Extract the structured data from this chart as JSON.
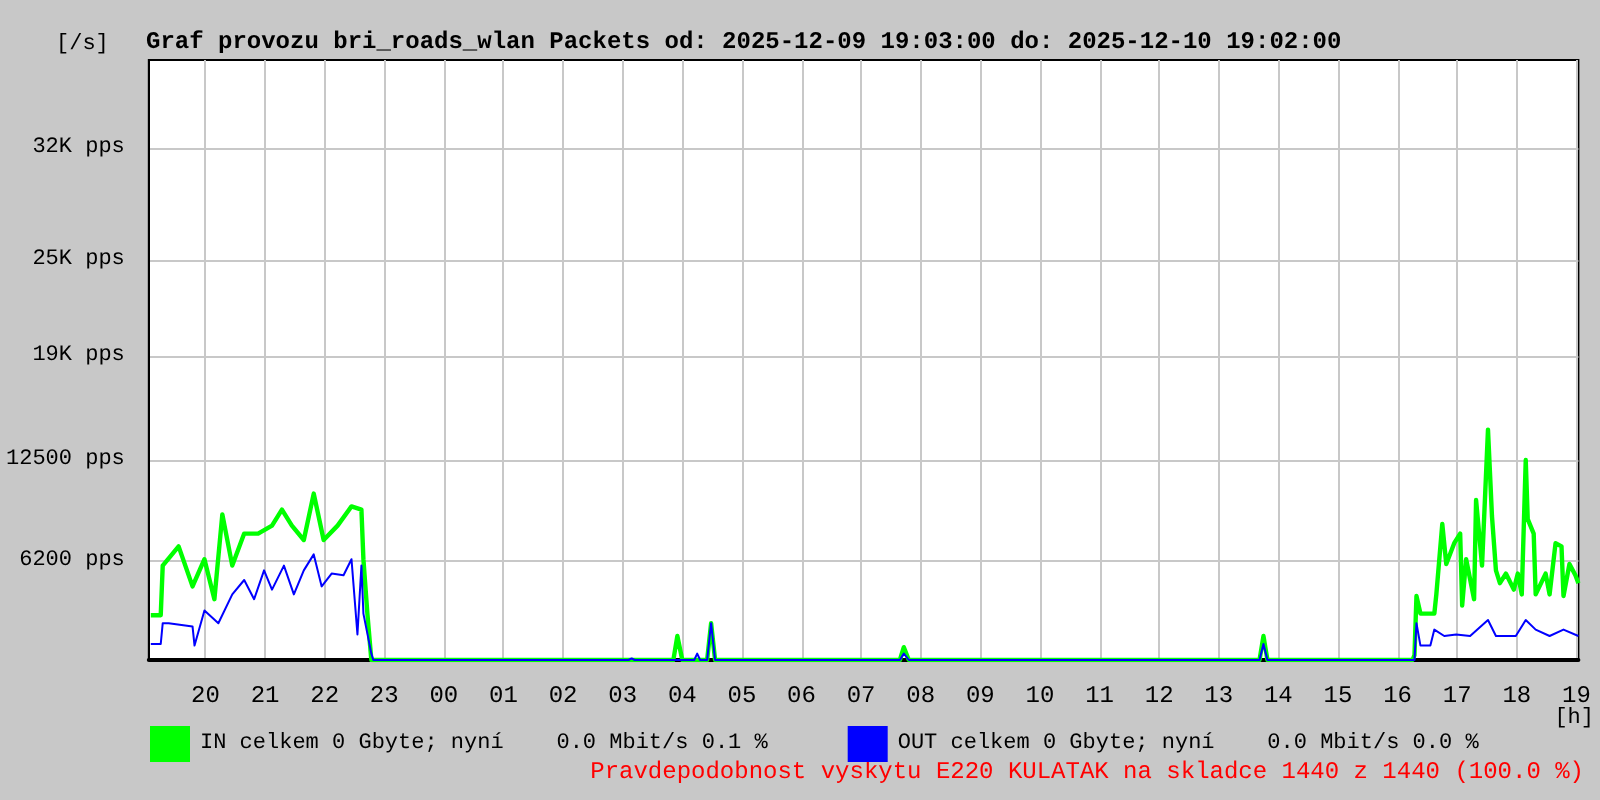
{
  "chart_data": {
    "type": "line",
    "title": "Graf provozu bri_roads_wlan Packets od: 2025-12-09 19:03:00 do: 2025-12-10 19:02:00",
    "ylabel": "[/s]",
    "xlabel": "[h]",
    "xlim": [
      "2025-12-09T19:03",
      "2025-12-10T19:02"
    ],
    "xticks": [
      {
        "value": "2025-12-09T20:00",
        "label": "20"
      },
      {
        "value": "2025-12-09T21:00",
        "label": "21"
      },
      {
        "value": "2025-12-09T22:00",
        "label": "22"
      },
      {
        "value": "2025-12-09T23:00",
        "label": "23"
      },
      {
        "value": "2025-12-10T00:00",
        "label": "00"
      },
      {
        "value": "2025-12-10T01:00",
        "label": "01"
      },
      {
        "value": "2025-12-10T02:00",
        "label": "02"
      },
      {
        "value": "2025-12-10T03:00",
        "label": "03"
      },
      {
        "value": "2025-12-10T04:00",
        "label": "04"
      },
      {
        "value": "2025-12-10T05:00",
        "label": "05"
      },
      {
        "value": "2025-12-10T06:00",
        "label": "06"
      },
      {
        "value": "2025-12-10T07:00",
        "label": "07"
      },
      {
        "value": "2025-12-10T08:00",
        "label": "08"
      },
      {
        "value": "2025-12-10T09:00",
        "label": "09"
      },
      {
        "value": "2025-12-10T10:00",
        "label": "10"
      },
      {
        "value": "2025-12-10T11:00",
        "label": "11"
      },
      {
        "value": "2025-12-10T12:00",
        "label": "12"
      },
      {
        "value": "2025-12-10T13:00",
        "label": "13"
      },
      {
        "value": "2025-12-10T14:00",
        "label": "14"
      },
      {
        "value": "2025-12-10T15:00",
        "label": "15"
      },
      {
        "value": "2025-12-10T16:00",
        "label": "16"
      },
      {
        "value": "2025-12-10T17:00",
        "label": "17"
      },
      {
        "value": "2025-12-10T18:00",
        "label": "18"
      },
      {
        "value": "2025-12-10T19:00",
        "label": "19"
      }
    ],
    "ylim": [
      0,
      37500
    ],
    "yticks": [
      {
        "value": 6200,
        "label": "6200 pps"
      },
      {
        "value": 12500,
        "label": "12500 pps"
      },
      {
        "value": 19000,
        "label": "19K pps"
      },
      {
        "value": 25000,
        "label": "25K pps"
      },
      {
        "value": 32000,
        "label": "32K pps"
      }
    ],
    "grid": true,
    "legend": "bottom left",
    "marker": "none",
    "line_style": "solid",
    "series": [
      {
        "name": "IN celkem 0 Gbyte; nyní    0.0 Mbit/s 0.1 %",
        "color": "#00ff00",
        "x": [
          "2025-12-09T19:05",
          "2025-12-09T19:15",
          "2025-12-09T19:17",
          "2025-12-09T19:33",
          "2025-12-09T19:47",
          "2025-12-09T19:59",
          "2025-12-09T20:09",
          "2025-12-09T20:17",
          "2025-12-09T20:27",
          "2025-12-09T20:39",
          "2025-12-09T20:53",
          "2025-12-09T21:07",
          "2025-12-09T21:17",
          "2025-12-09T21:27",
          "2025-12-09T21:39",
          "2025-12-09T21:49",
          "2025-12-09T21:59",
          "2025-12-09T22:13",
          "2025-12-09T22:27",
          "2025-12-09T22:37",
          "2025-12-09T22:39",
          "2025-12-09T22:43",
          "2025-12-09T22:47",
          "2025-12-10T03:51",
          "2025-12-10T03:55",
          "2025-12-10T04:00",
          "2025-12-10T04:25",
          "2025-12-10T04:29",
          "2025-12-10T04:33",
          "2025-12-10T07:39",
          "2025-12-10T07:43",
          "2025-12-10T07:48",
          "2025-12-10T13:41",
          "2025-12-10T13:45",
          "2025-12-10T13:49",
          "2025-12-10T16:15",
          "2025-12-10T16:17",
          "2025-12-10T16:19",
          "2025-12-10T16:23",
          "2025-12-10T16:37",
          "2025-12-10T16:39",
          "2025-12-10T16:45",
          "2025-12-10T16:49",
          "2025-12-10T16:57",
          "2025-12-10T17:03",
          "2025-12-10T17:05",
          "2025-12-10T17:09",
          "2025-12-10T17:17",
          "2025-12-10T17:19",
          "2025-12-10T17:25",
          "2025-12-10T17:31",
          "2025-12-10T17:35",
          "2025-12-10T17:39",
          "2025-12-10T17:43",
          "2025-12-10T17:49",
          "2025-12-10T17:57",
          "2025-12-10T18:01",
          "2025-12-10T18:05",
          "2025-12-10T18:09",
          "2025-12-10T18:11",
          "2025-12-10T18:17",
          "2025-12-10T18:19",
          "2025-12-10T18:29",
          "2025-12-10T18:33",
          "2025-12-10T18:39",
          "2025-12-10T18:45",
          "2025-12-10T18:47",
          "2025-12-10T18:53",
          "2025-12-10T18:59",
          "2025-12-10T19:02"
        ],
        "values": [
          2800,
          2800,
          5900,
          7100,
          4600,
          6300,
          3800,
          9100,
          5900,
          7900,
          7900,
          8400,
          9400,
          8400,
          7500,
          10400,
          7500,
          8400,
          9600,
          9400,
          6300,
          2900,
          0,
          0,
          1500,
          0,
          0,
          2300,
          0,
          0,
          800,
          0,
          0,
          1500,
          0,
          0,
          300,
          4000,
          2900,
          2900,
          4100,
          8500,
          6000,
          7300,
          7900,
          3400,
          6300,
          3800,
          10000,
          5900,
          14400,
          9000,
          5600,
          4800,
          5400,
          4400,
          5400,
          4100,
          12500,
          8800,
          7900,
          4100,
          5400,
          4100,
          7300,
          7100,
          4000,
          6000,
          5300,
          4800
        ]
      },
      {
        "name": "OUT celkem 0 Gbyte; nyní    0.0 Mbit/s 0.0 %",
        "color": "#0000ff",
        "x": [
          "2025-12-09T19:05",
          "2025-12-09T19:15",
          "2025-12-09T19:17",
          "2025-12-09T19:23",
          "2025-12-09T19:47",
          "2025-12-09T19:49",
          "2025-12-09T19:59",
          "2025-12-09T20:13",
          "2025-12-09T20:27",
          "2025-12-09T20:39",
          "2025-12-09T20:49",
          "2025-12-09T20:59",
          "2025-12-09T21:07",
          "2025-12-09T21:19",
          "2025-12-09T21:29",
          "2025-12-09T21:39",
          "2025-12-09T21:49",
          "2025-12-09T21:57",
          "2025-12-09T22:07",
          "2025-12-09T22:19",
          "2025-12-09T22:27",
          "2025-12-09T22:33",
          "2025-12-09T22:37",
          "2025-12-09T22:39",
          "2025-12-09T22:47",
          "2025-12-09T22:49",
          "2025-12-10T03:06",
          "2025-12-10T03:09",
          "2025-12-10T03:12",
          "2025-12-10T04:12",
          "2025-12-10T04:15",
          "2025-12-10T04:18",
          "2025-12-10T04:25",
          "2025-12-10T04:29",
          "2025-12-10T04:33",
          "2025-12-10T07:39",
          "2025-12-10T07:43",
          "2025-12-10T07:48",
          "2025-12-10T13:41",
          "2025-12-10T13:45",
          "2025-12-10T13:49",
          "2025-12-10T16:17",
          "2025-12-10T16:19",
          "2025-12-10T16:23",
          "2025-12-10T16:33",
          "2025-12-10T16:37",
          "2025-12-10T16:47",
          "2025-12-10T16:59",
          "2025-12-10T17:13",
          "2025-12-10T17:31",
          "2025-12-10T17:39",
          "2025-12-10T17:59",
          "2025-12-10T18:09",
          "2025-12-10T18:19",
          "2025-12-10T18:33",
          "2025-12-10T18:47",
          "2025-12-10T19:02"
        ],
        "values": [
          1000,
          1000,
          2300,
          2300,
          2100,
          900,
          3100,
          2300,
          4100,
          5000,
          3800,
          5600,
          4400,
          5900,
          4100,
          5600,
          6600,
          4600,
          5400,
          5300,
          6300,
          1600,
          5900,
          2900,
          400,
          0,
          0,
          100,
          0,
          0,
          400,
          0,
          0,
          2300,
          0,
          0,
          400,
          0,
          0,
          1000,
          0,
          0,
          2300,
          900,
          900,
          1900,
          1500,
          1600,
          1500,
          2500,
          1500,
          1500,
          2500,
          1900,
          1500,
          1900,
          1500
        ]
      }
    ],
    "annotations": [
      "Pravdepodobnost vyskytu E220 KULATAK na skladce 1440 z 1440 (100.0 %)"
    ]
  }
}
